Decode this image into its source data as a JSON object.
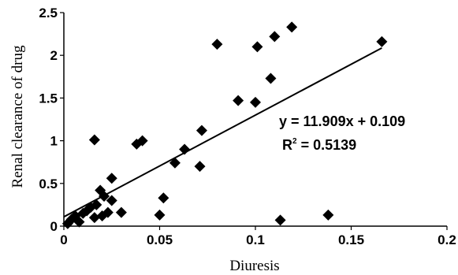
{
  "chart_data": {
    "type": "scatter",
    "xlabel": "Diuresis",
    "ylabel": "Renal clearance of drug",
    "xlim": [
      0,
      0.2
    ],
    "ylim": [
      0,
      2.5
    ],
    "x_ticks": [
      "0",
      "0.05",
      "0.1",
      "0.15",
      "0.2"
    ],
    "y_ticks": [
      "0",
      "0.5",
      "1",
      "1.5",
      "2",
      "2.5"
    ],
    "grid": false,
    "legend": "none",
    "colors": {
      "marker": "#000000",
      "trendline": "#000000"
    },
    "series": [
      {
        "marker": "diamond",
        "points": [
          [
            0.002,
            0.03
          ],
          [
            0.004,
            0.08
          ],
          [
            0.006,
            0.12
          ],
          [
            0.008,
            0.05
          ],
          [
            0.01,
            0.15
          ],
          [
            0.012,
            0.18
          ],
          [
            0.014,
            0.22
          ],
          [
            0.016,
            0.1
          ],
          [
            0.017,
            0.25
          ],
          [
            0.019,
            0.42
          ],
          [
            0.02,
            0.12
          ],
          [
            0.021,
            0.35
          ],
          [
            0.023,
            0.16
          ],
          [
            0.025,
            0.3
          ],
          [
            0.025,
            0.56
          ],
          [
            0.03,
            0.16
          ],
          [
            0.016,
            1.01
          ],
          [
            0.038,
            0.96
          ],
          [
            0.041,
            1.0
          ],
          [
            0.05,
            0.13
          ],
          [
            0.052,
            0.33
          ],
          [
            0.058,
            0.74
          ],
          [
            0.063,
            0.9
          ],
          [
            0.071,
            0.7
          ],
          [
            0.072,
            1.12
          ],
          [
            0.08,
            2.13
          ],
          [
            0.091,
            1.47
          ],
          [
            0.1,
            1.45
          ],
          [
            0.101,
            2.1
          ],
          [
            0.108,
            1.73
          ],
          [
            0.11,
            2.22
          ],
          [
            0.113,
            0.07
          ],
          [
            0.119,
            2.33
          ],
          [
            0.138,
            0.13
          ],
          [
            0.166,
            2.16
          ]
        ]
      }
    ],
    "trendline": {
      "slope": 11.909,
      "intercept": 0.109,
      "x_start": 0,
      "x_end": 0.166,
      "equation": "y = 11.909x + 0.109",
      "r2_prefix": "R",
      "r2_sup": "2",
      "r2_value": " = 0.5139"
    }
  }
}
